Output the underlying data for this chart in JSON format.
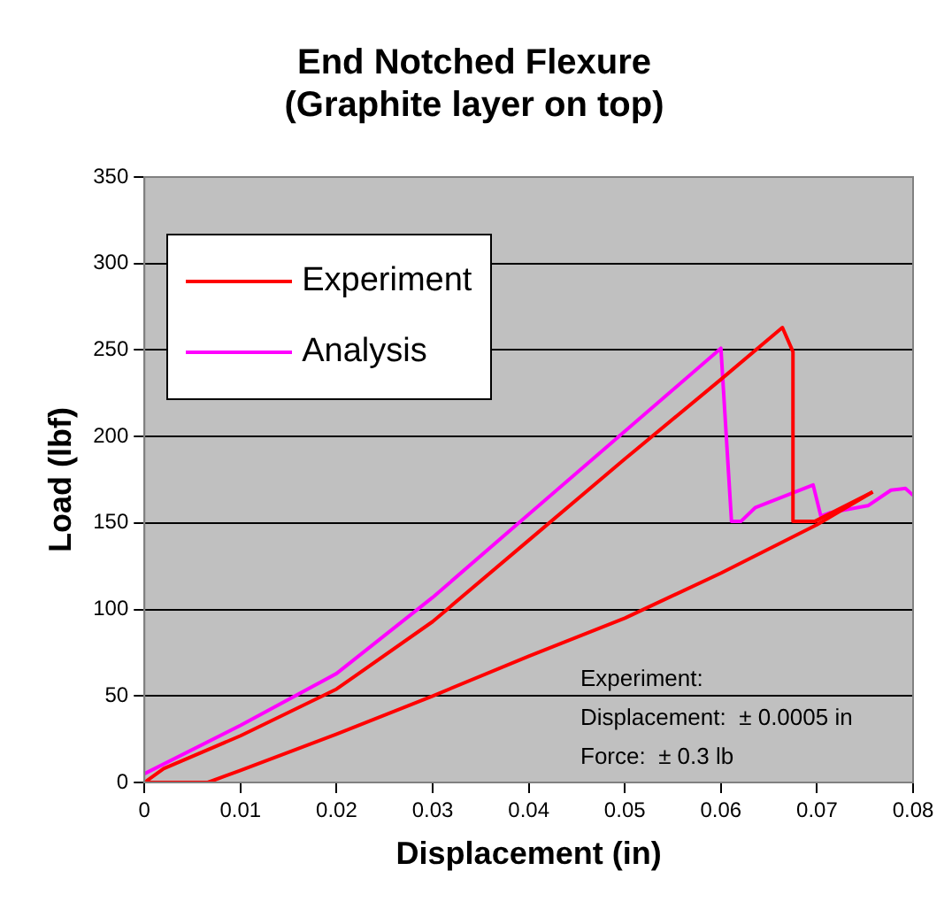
{
  "chart_data": {
    "type": "line",
    "title": "End Notched Flexure\n(Graphite layer on top)",
    "xlabel": "Displacement (in)",
    "ylabel": "Load (lbf)",
    "xlim": [
      0,
      0.08
    ],
    "xticks": [
      0,
      0.01,
      0.02,
      0.03,
      0.04,
      0.05,
      0.06,
      0.07,
      0.08
    ],
    "ylim": [
      0,
      350
    ],
    "yticks": [
      0,
      50,
      100,
      150,
      200,
      250,
      300,
      350
    ],
    "grid": "y",
    "legend": "top left",
    "marker": "none",
    "line_style": "solid",
    "annotations": [
      "Experiment:",
      "Displacement:  ± 0.0005 in",
      "Force:  ± 0.3 lb"
    ],
    "series": [
      {
        "name": "Experiment",
        "color": "#ff0000",
        "x": [
          0,
          0.002,
          0.01,
          0.02,
          0.03,
          0.04,
          0.05,
          0.06,
          0.0664,
          0.0675,
          0.0675,
          0.0698,
          0.0758
        ],
        "values": [
          0,
          8,
          27,
          54,
          93,
          140,
          187,
          233,
          263,
          249,
          151,
          151,
          168
        ]
      },
      {
        "color": "#ff0000",
        "x": [
          0,
          0.0066,
          0.01,
          0.02,
          0.03,
          0.04,
          0.05,
          0.06,
          0.07,
          0.0758
        ],
        "values": [
          0,
          0,
          7,
          28,
          50,
          73,
          95,
          121,
          149,
          168
        ]
      },
      {
        "name": "Analysis",
        "color": "#ff00ff",
        "x": [
          0,
          0.01,
          0.02,
          0.03,
          0.04,
          0.05,
          0.06,
          0.0611,
          0.0621,
          0.0636,
          0.0696,
          0.0704,
          0.0714,
          0.0753,
          0.0777,
          0.0792,
          0.08
        ],
        "values": [
          5,
          33,
          63,
          107,
          155,
          203,
          251,
          151,
          151,
          159,
          172,
          154,
          156,
          160,
          169,
          170,
          166
        ]
      }
    ]
  }
}
